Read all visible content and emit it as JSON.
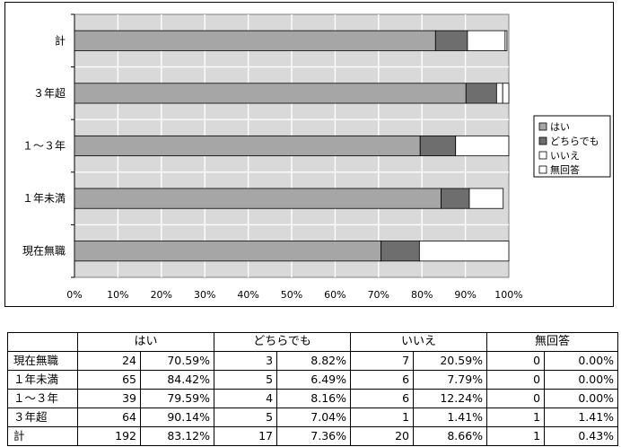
{
  "chart_data": {
    "type": "bar",
    "orientation": "horizontal",
    "stacked": true,
    "percent_stacked": true,
    "categories": [
      "計",
      "３年超",
      "１～３年",
      "１年未満",
      "現在無職"
    ],
    "series": [
      {
        "name": "はい",
        "values": [
          83.12,
          90.14,
          79.59,
          84.42,
          70.59
        ],
        "color": "#a6a6a6"
      },
      {
        "name": "どちらでも",
        "values": [
          7.36,
          7.04,
          8.16,
          6.49,
          8.82
        ],
        "color": "#6e6e6e"
      },
      {
        "name": "いいえ",
        "values": [
          8.66,
          1.41,
          12.24,
          7.79,
          20.59
        ],
        "color": "#ffffff"
      },
      {
        "name": "無回答",
        "values": [
          0.43,
          1.41,
          0.0,
          0.0,
          0.0
        ],
        "color": "#ffffff"
      }
    ],
    "xlim": [
      0,
      100
    ],
    "x_ticks": [
      "0%",
      "10%",
      "20%",
      "30%",
      "40%",
      "50%",
      "60%",
      "70%",
      "80%",
      "90%",
      "100%"
    ],
    "grid": true,
    "plot_background": "#d9d9d9",
    "legend_position": "right"
  },
  "table": {
    "headers": [
      "",
      "はい",
      "どちらでも",
      "いいえ",
      "無回答"
    ],
    "rows": [
      {
        "label": "現在無職",
        "cells": [
          "24",
          "70.59%",
          "3",
          "8.82%",
          "7",
          "20.59%",
          "0",
          "0.00%"
        ]
      },
      {
        "label": "１年未満",
        "cells": [
          "65",
          "84.42%",
          "5",
          "6.49%",
          "6",
          "7.79%",
          "0",
          "0.00%"
        ]
      },
      {
        "label": "１～３年",
        "cells": [
          "39",
          "79.59%",
          "4",
          "8.16%",
          "6",
          "12.24%",
          "0",
          "0.00%"
        ]
      },
      {
        "label": "３年超",
        "cells": [
          "64",
          "90.14%",
          "5",
          "7.04%",
          "1",
          "1.41%",
          "1",
          "1.41%"
        ]
      },
      {
        "label": "計",
        "cells": [
          "192",
          "83.12%",
          "17",
          "7.36%",
          "20",
          "8.66%",
          "1",
          "0.43%"
        ]
      }
    ]
  }
}
